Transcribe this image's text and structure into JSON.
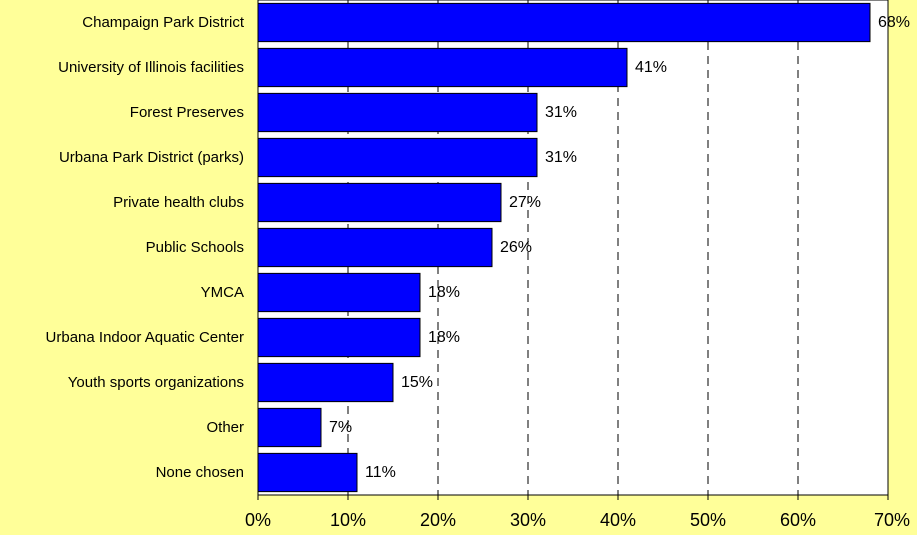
{
  "chart_data": {
    "type": "bar",
    "orientation": "horizontal",
    "categories": [
      "Champaign Park District",
      "University of Illinois facilities",
      "Forest Preserves",
      "Urbana Park District (parks)",
      "Private health clubs",
      "Public Schools",
      "YMCA",
      "Urbana Indoor Aquatic Center",
      "Youth sports organizations",
      "Other",
      "None chosen"
    ],
    "values": [
      68,
      41,
      31,
      31,
      27,
      26,
      18,
      18,
      15,
      7,
      11
    ],
    "data_labels": [
      "68%",
      "41%",
      "31%",
      "31%",
      "27%",
      "26%",
      "18%",
      "18%",
      "15%",
      "7%",
      "11%"
    ],
    "xlim": [
      0,
      70
    ],
    "x_ticks": [
      "0%",
      "10%",
      "20%",
      "30%",
      "40%",
      "50%",
      "60%",
      "70%"
    ],
    "title": "",
    "xlabel": "",
    "ylabel": "",
    "grid": "vertical dashed",
    "legend": "none",
    "colors": {
      "bar": "#0000FF",
      "bar_edge": "#000000",
      "plot_background": "#FFFFFF",
      "page_background": "#FFFF99",
      "grid": "#000000"
    }
  }
}
